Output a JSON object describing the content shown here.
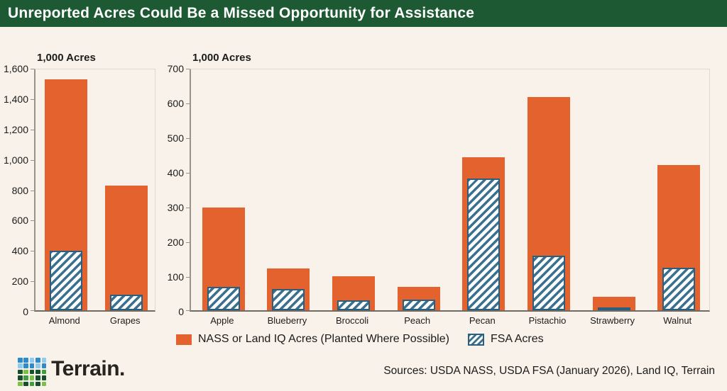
{
  "header": {
    "title": "Unreported Acres Could Be a Missed Opportunity for Assistance"
  },
  "colors": {
    "background": "#F8F2EB",
    "header_green": "#1D5A33",
    "bar_orange": "#E4622D",
    "hatch_blue": "#3A7190",
    "hatch_border": "#2C5F7D"
  },
  "chart_data": [
    {
      "type": "bar",
      "title": "1,000 Acres",
      "ylabel": "1,000 Acres",
      "categories": [
        "Almond",
        "Grapes"
      ],
      "series": [
        {
          "name": "NASS or Land IQ Acres (Planted Where Possible)",
          "values": [
            1520,
            820
          ]
        },
        {
          "name": "FSA Acres",
          "values": [
            390,
            105
          ]
        }
      ],
      "ylim": [
        0,
        1600
      ],
      "yticks": [
        "0",
        "200",
        "400",
        "600",
        "800",
        "1,000",
        "1,200",
        "1,400",
        "1,600"
      ],
      "grid": false,
      "bar_style": "overlay",
      "legend_position": "bottom"
    },
    {
      "type": "bar",
      "title": "1,000 Acres",
      "ylabel": "1,000 Acres",
      "categories": [
        "Apple",
        "Blueberry",
        "Broccoli",
        "Peach",
        "Pecan",
        "Pistachio",
        "Strawberry",
        "Walnut"
      ],
      "series": [
        {
          "name": "NASS or Land IQ Acres (Planted Where Possible)",
          "values": [
            295,
            120,
            97,
            67,
            440,
            615,
            38,
            418
          ]
        },
        {
          "name": "FSA Acres",
          "values": [
            68,
            62,
            28,
            31,
            380,
            158,
            9,
            122
          ]
        }
      ],
      "ylim": [
        0,
        700
      ],
      "yticks": [
        "0",
        "100",
        "200",
        "300",
        "400",
        "500",
        "600",
        "700"
      ],
      "grid": false,
      "bar_style": "overlay",
      "legend_position": "bottom"
    }
  ],
  "footer": {
    "brand": "Terrain.",
    "sources": "Sources: USDA NASS, USDA FSA (January 2026), Land IQ, Terrain",
    "logo_colors": [
      "#2E8BC9",
      "#2E8BC9",
      "#8FCBEE",
      "#2E8BC9",
      "#8FCBEE",
      "#8FCBEE",
      "#2E8BC9",
      "#2E8BC9",
      "#8FCBEE",
      "#2E8BC9",
      "#174F2D",
      "#7BC142",
      "#174F2D",
      "#174F2D",
      "#3E9E41",
      "#174F2D",
      "#3E9E41",
      "#7BC142",
      "#174F2D",
      "#174F2D",
      "#7BC142",
      "#174F2D",
      "#3E9E41",
      "#174F2D",
      "#7BC142"
    ]
  }
}
